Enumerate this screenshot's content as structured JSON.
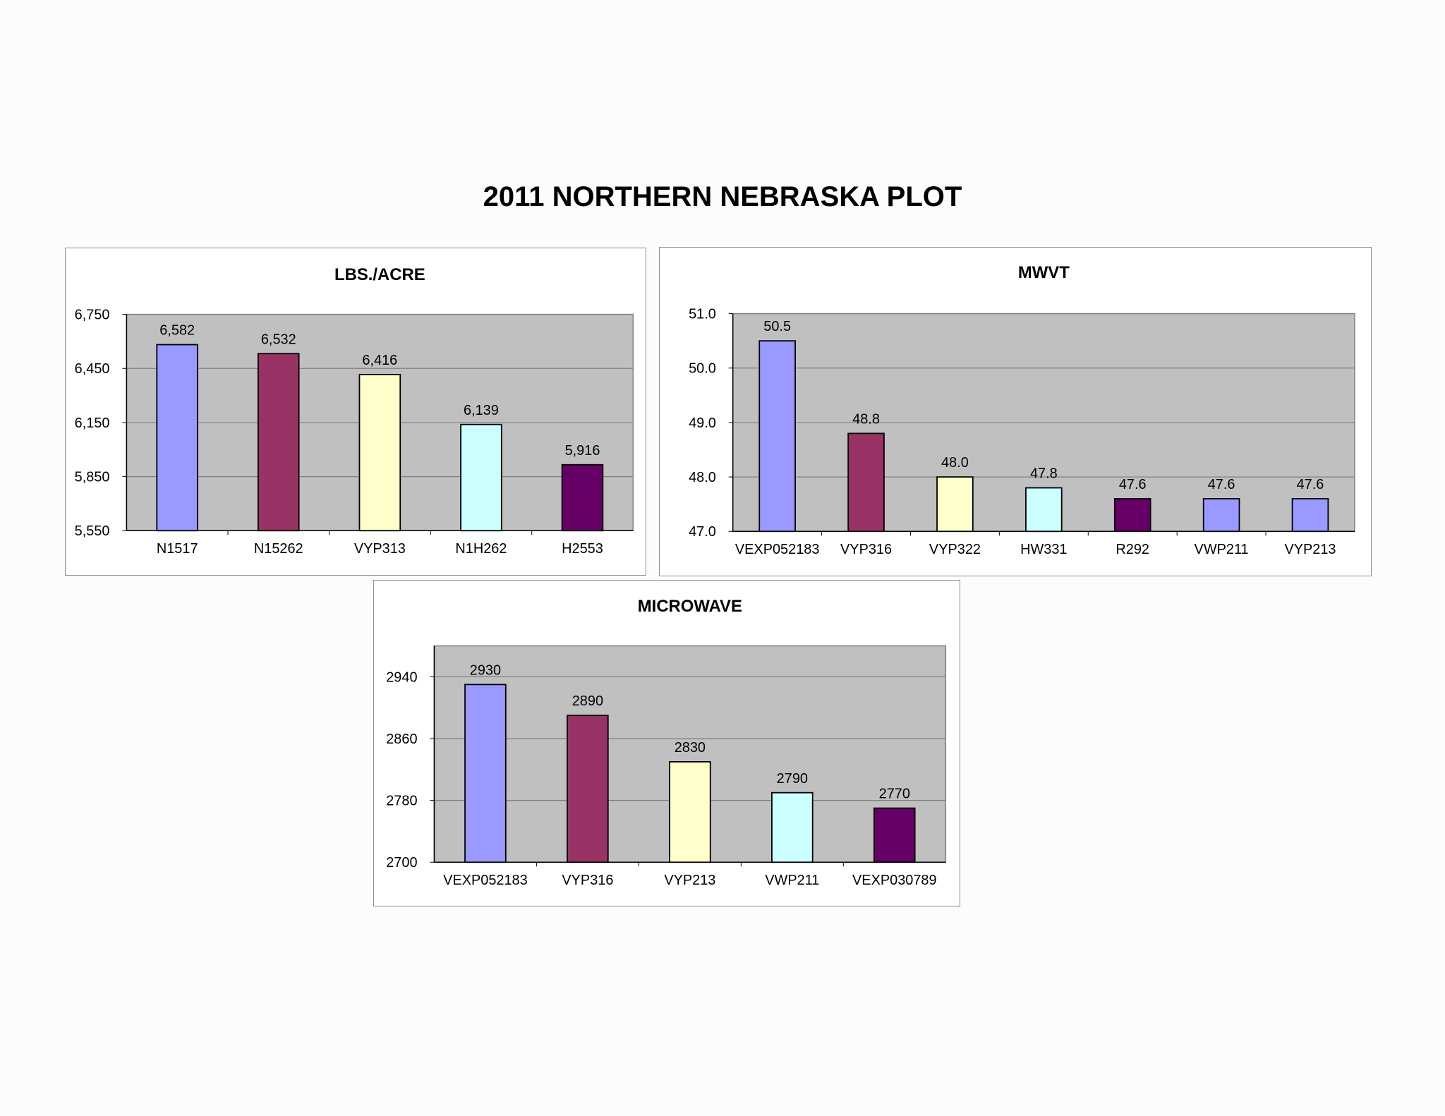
{
  "page": {
    "title": "2011 NORTHERN NEBRASKA PLOT"
  },
  "colors": {
    "plot_background": "#c0c0c0",
    "gridline": "#808080",
    "bar_outline": "#000000",
    "palette": [
      "#9999ff",
      "#993366",
      "#ffffcc",
      "#ccffff",
      "#660066"
    ]
  },
  "chart_data": [
    {
      "id": "lbs",
      "type": "bar",
      "title": "LBS./ACRE",
      "categories": [
        "N1517",
        "N15262",
        "VYP313",
        "N1H262",
        "H2553"
      ],
      "values": [
        6582,
        6532,
        6416,
        6139,
        5916
      ],
      "data_labels": [
        "6,582",
        "6,532",
        "6,416",
        "6,139",
        "5,916"
      ],
      "bar_colors": [
        "#9999ff",
        "#993366",
        "#ffffcc",
        "#ccffff",
        "#660066"
      ],
      "ylim": [
        5550,
        6750
      ],
      "yticks": [
        5550,
        5850,
        6150,
        6450,
        6750
      ],
      "ytick_labels": [
        "5,550",
        "5,850",
        "6,150",
        "6,450",
        "6,750"
      ],
      "grid": true,
      "legend": "none"
    },
    {
      "id": "mwvt",
      "type": "bar",
      "title": "MWVT",
      "categories": [
        "VEXP052183",
        "VYP316",
        "VYP322",
        "HW331",
        "R292",
        "VWP211",
        "VYP213"
      ],
      "values": [
        50.5,
        48.8,
        48.0,
        47.8,
        47.6,
        47.6,
        47.6
      ],
      "data_labels": [
        "50.5",
        "48.8",
        "48.0",
        "47.8",
        "47.6",
        "47.6",
        "47.6"
      ],
      "bar_colors": [
        "#9999ff",
        "#993366",
        "#ffffcc",
        "#ccffff",
        "#660066",
        "#9999ff",
        "#9999ff"
      ],
      "ylim": [
        47.0,
        51.0
      ],
      "yticks": [
        47,
        48,
        49,
        50,
        51
      ],
      "ytick_labels": [
        "47.0",
        "48.0",
        "49.0",
        "50.0",
        "51.0"
      ],
      "grid": true,
      "legend": "none"
    },
    {
      "id": "microwave",
      "type": "bar",
      "title": "MICROWAVE",
      "categories": [
        "VEXP052183",
        "VYP316",
        "VYP213",
        "VWP211",
        "VEXP030789"
      ],
      "values": [
        2930,
        2890,
        2830,
        2790,
        2770
      ],
      "data_labels": [
        "2930",
        "2890",
        "2830",
        "2790",
        "2770"
      ],
      "bar_colors": [
        "#9999ff",
        "#993366",
        "#ffffcc",
        "#ccffff",
        "#660066"
      ],
      "ylim": [
        2700,
        2980
      ],
      "yticks": [
        2700,
        2780,
        2860,
        2940
      ],
      "ytick_labels": [
        "2700",
        "2780",
        "2860",
        "2940"
      ],
      "grid": true,
      "legend": "none"
    }
  ]
}
